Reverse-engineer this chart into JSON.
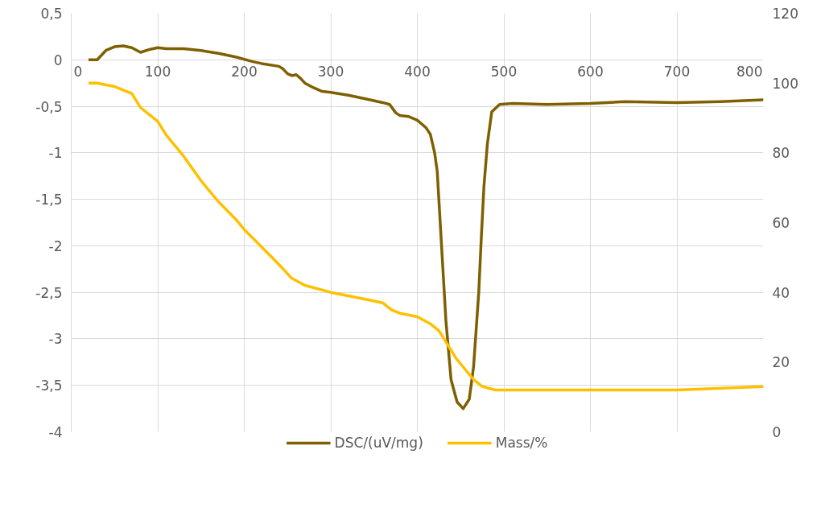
{
  "chart_data": {
    "type": "line",
    "xlim": [
      0,
      800
    ],
    "xticks": [
      0,
      100,
      200,
      300,
      400,
      500,
      600,
      700,
      800
    ],
    "ylim": [
      -4,
      0.5
    ],
    "yticks": [
      {
        "value": -4,
        "label": "-4"
      },
      {
        "value": -3.5,
        "label": "-3,5"
      },
      {
        "value": -3,
        "label": "-3"
      },
      {
        "value": -2.5,
        "label": "-2,5"
      },
      {
        "value": -2,
        "label": "-2"
      },
      {
        "value": -1.5,
        "label": "-1,5"
      },
      {
        "value": -1,
        "label": "-1"
      },
      {
        "value": -0.5,
        "label": "-0,5"
      },
      {
        "value": 0,
        "label": "0"
      },
      {
        "value": 0.5,
        "label": "0,5"
      }
    ],
    "y2lim": [
      0,
      120
    ],
    "y2ticks": [
      0,
      20,
      40,
      60,
      80,
      100,
      120
    ],
    "grid": true,
    "legend": "bottom",
    "series": [
      {
        "name": "DSC/(uV/mg)",
        "color": "#7f6000",
        "x": [
          20,
          30,
          40,
          50,
          60,
          70,
          80,
          90,
          100,
          110,
          130,
          150,
          170,
          190,
          210,
          220,
          240,
          245,
          250,
          255,
          260,
          265,
          270,
          280,
          290,
          300,
          320,
          340,
          360,
          368,
          375,
          380,
          390,
          400,
          405,
          410,
          415,
          420,
          423,
          428,
          433,
          439,
          446,
          453,
          460,
          465,
          471,
          474,
          477,
          481,
          486,
          495,
          510,
          550,
          600,
          640,
          700,
          750,
          800
        ],
        "values": [
          0,
          0,
          0.1,
          0.14,
          0.15,
          0.13,
          0.08,
          0.11,
          0.13,
          0.12,
          0.12,
          0.1,
          0.07,
          0.03,
          -0.02,
          -0.04,
          -0.07,
          -0.1,
          -0.15,
          -0.17,
          -0.16,
          -0.2,
          -0.25,
          -0.3,
          -0.34,
          -0.35,
          -0.38,
          -0.42,
          -0.46,
          -0.48,
          -0.57,
          -0.6,
          -0.61,
          -0.65,
          -0.69,
          -0.73,
          -0.8,
          -1.0,
          -1.2,
          -2.0,
          -2.8,
          -3.44,
          -3.68,
          -3.75,
          -3.65,
          -3.3,
          -2.5,
          -1.9,
          -1.36,
          -0.9,
          -0.56,
          -0.48,
          -0.47,
          -0.48,
          -0.47,
          -0.45,
          -0.46,
          -0.45,
          -0.43
        ]
      },
      {
        "name": "Mass/%",
        "color": "#ffc000",
        "axis": "y2",
        "x": [
          20,
          30,
          50,
          60,
          70,
          75,
          80,
          100,
          110,
          130,
          150,
          170,
          190,
          200,
          220,
          240,
          255,
          270,
          300,
          340,
          360,
          370,
          380,
          400,
          415,
          425,
          435,
          445,
          455,
          465,
          475,
          490,
          600,
          700,
          800
        ],
        "values": [
          100,
          100,
          99,
          98,
          97,
          95,
          93,
          89,
          85,
          79,
          72,
          66,
          61,
          58,
          53,
          48,
          44,
          42,
          40,
          38,
          37,
          35,
          34,
          33,
          31,
          29,
          25,
          21,
          18,
          15,
          13,
          12,
          12,
          12,
          13
        ]
      }
    ]
  }
}
